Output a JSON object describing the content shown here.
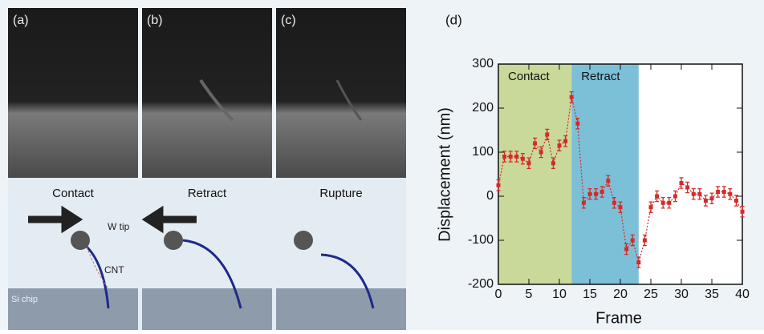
{
  "panels": [
    {
      "label": "(a)",
      "caption": "Contact"
    },
    {
      "label": "(b)",
      "caption": "Retract"
    },
    {
      "label": "(c)",
      "caption": "Rupture"
    }
  ],
  "annotations": {
    "tip": "W tip",
    "cnt": "CNT",
    "chip": "Si chip"
  },
  "chart_data": {
    "type": "errorline",
    "title": "(d)",
    "xlabel": "Frame",
    "ylabel": "Displacement (nm)",
    "x": [
      0,
      1,
      2,
      3,
      4,
      5,
      6,
      7,
      8,
      9,
      10,
      11,
      12,
      13,
      14,
      15,
      16,
      17,
      18,
      19,
      20,
      21,
      22,
      23,
      24,
      25,
      26,
      27,
      28,
      29,
      30,
      31,
      32,
      33,
      34,
      35,
      36,
      37,
      38,
      39,
      40
    ],
    "values": [
      25,
      90,
      90,
      90,
      85,
      75,
      120,
      100,
      140,
      75,
      115,
      125,
      225,
      165,
      -15,
      5,
      5,
      10,
      35,
      -15,
      -25,
      -120,
      -100,
      -150,
      -100,
      -25,
      0,
      -15,
      -15,
      0,
      30,
      20,
      5,
      5,
      -10,
      -5,
      10,
      10,
      5,
      -10,
      -35
    ],
    "errors": [
      12,
      12,
      12,
      12,
      12,
      12,
      12,
      12,
      12,
      12,
      12,
      12,
      12,
      12,
      12,
      12,
      12,
      12,
      12,
      12,
      12,
      12,
      12,
      12,
      12,
      12,
      12,
      12,
      12,
      12,
      12,
      12,
      12,
      12,
      12,
      12,
      12,
      12,
      12,
      12,
      12
    ],
    "color": "#d42a2a",
    "regions": [
      {
        "label": "Contact",
        "start": 0,
        "end": 12,
        "color": "#c8d99a"
      },
      {
        "label": "Retract",
        "start": 12,
        "end": 23,
        "color": "#7cc0d8"
      }
    ],
    "xlim": [
      0,
      40
    ],
    "xticks": [
      0,
      5,
      10,
      15,
      20,
      25,
      30,
      35,
      40
    ],
    "ylim": [
      -200,
      300
    ],
    "yticks": [
      -200,
      -100,
      0,
      100,
      200,
      300
    ]
  }
}
